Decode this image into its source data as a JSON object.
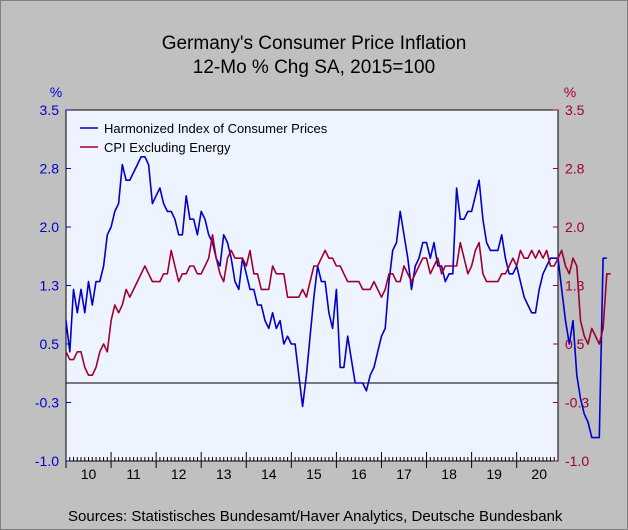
{
  "chart_data": {
    "type": "line",
    "title": "Germany's Consumer Price Inflation",
    "subtitle": "12-Mo % Chg   SA, 2015=100",
    "ylabel_left": "%",
    "ylabel_right": "%",
    "ylim": [
      -1.0,
      3.5
    ],
    "yticks": [
      "3.5",
      "2.8",
      "2.0",
      "1.3",
      "0.5",
      "-0.3",
      "-1.0"
    ],
    "ytick_values": [
      3.5,
      2.75,
      2.0,
      1.25,
      0.5,
      -0.25,
      -1.0
    ],
    "xlim": [
      2010.0,
      2020.917
    ],
    "xticks": [
      "10",
      "11",
      "12",
      "13",
      "14",
      "15",
      "16",
      "17",
      "18",
      "19",
      "20"
    ],
    "reference_line": 0,
    "legend_position": "top-left",
    "colors": {
      "hicp": "#0000cc",
      "core": "#a00030",
      "plot_bg": "#eef4ff",
      "left_axis": "#0000cc",
      "right_axis": "#a00030"
    },
    "source": "Sources:   Statistisches Bundesamt/Haver Analytics, Deutsche Bundesbank",
    "series": [
      {
        "name": "Harmonized Index of Consumer Prices",
        "color": "#0000cc",
        "start": 2010.0,
        "step": 0.0833333,
        "values": [
          0.8,
          0.4,
          1.2,
          0.9,
          1.2,
          0.9,
          1.3,
          1.0,
          1.3,
          1.3,
          1.5,
          1.9,
          2.0,
          2.2,
          2.3,
          2.8,
          2.6,
          2.6,
          2.7,
          2.8,
          2.9,
          2.9,
          2.8,
          2.3,
          2.4,
          2.5,
          2.3,
          2.2,
          2.2,
          2.1,
          1.9,
          1.9,
          2.4,
          2.1,
          2.1,
          1.9,
          2.2,
          2.1,
          1.9,
          1.8,
          1.6,
          1.5,
          1.9,
          1.8,
          1.6,
          1.3,
          1.2,
          1.6,
          1.4,
          1.2,
          1.2,
          1.0,
          1.0,
          0.8,
          0.7,
          0.9,
          0.7,
          0.8,
          0.5,
          0.6,
          0.5,
          0.5,
          0.1,
          -0.3,
          0.1,
          0.6,
          1.1,
          1.5,
          1.3,
          1.3,
          0.9,
          0.7,
          1.2,
          0.2,
          0.2,
          0.6,
          0.3,
          0.0,
          0.0,
          0.0,
          -0.1,
          0.1,
          0.2,
          0.4,
          0.6,
          0.7,
          1.3,
          1.7,
          1.8,
          2.2,
          1.9,
          1.6,
          1.2,
          1.5,
          1.6,
          1.8,
          1.8,
          1.6,
          1.8,
          1.5,
          1.5,
          1.3,
          1.4,
          1.4,
          2.5,
          2.1,
          2.1,
          2.2,
          2.2,
          2.4,
          2.6,
          2.1,
          1.8,
          1.7,
          1.7,
          1.7,
          1.9,
          1.6,
          1.4,
          1.4,
          1.5,
          1.3,
          1.1,
          1.0,
          0.9,
          0.9,
          1.2,
          1.4,
          1.5,
          1.6,
          1.6,
          1.6,
          1.2,
          0.8,
          0.5,
          0.8,
          0.1,
          -0.2,
          -0.4,
          -0.5,
          -0.7,
          -0.7,
          -0.7,
          1.6,
          1.6
        ]
      },
      {
        "name": "CPI Excluding Energy",
        "color": "#a00030",
        "start": 2010.0,
        "step": 0.0833333,
        "values": [
          0.4,
          0.3,
          0.3,
          0.4,
          0.4,
          0.2,
          0.1,
          0.1,
          0.2,
          0.4,
          0.5,
          0.4,
          0.8,
          1.0,
          0.9,
          1.0,
          1.2,
          1.1,
          1.2,
          1.3,
          1.4,
          1.5,
          1.4,
          1.3,
          1.3,
          1.3,
          1.4,
          1.4,
          1.7,
          1.5,
          1.3,
          1.4,
          1.4,
          1.5,
          1.5,
          1.4,
          1.4,
          1.5,
          1.6,
          1.9,
          1.6,
          1.4,
          1.3,
          1.6,
          1.7,
          1.6,
          1.6,
          1.6,
          1.5,
          1.7,
          1.4,
          1.4,
          1.2,
          1.2,
          1.2,
          1.5,
          1.4,
          1.4,
          1.4,
          1.1,
          1.1,
          1.1,
          1.1,
          1.2,
          1.1,
          1.3,
          1.5,
          1.5,
          1.6,
          1.7,
          1.6,
          1.6,
          1.5,
          1.5,
          1.4,
          1.3,
          1.3,
          1.3,
          1.3,
          1.2,
          1.2,
          1.2,
          1.3,
          1.2,
          1.1,
          1.2,
          1.4,
          1.4,
          1.3,
          1.3,
          1.5,
          1.4,
          1.3,
          1.4,
          1.5,
          1.6,
          1.6,
          1.4,
          1.5,
          1.6,
          1.4,
          1.5,
          1.5,
          1.5,
          1.5,
          1.8,
          1.6,
          1.4,
          1.5,
          1.7,
          1.8,
          1.4,
          1.3,
          1.3,
          1.3,
          1.3,
          1.4,
          1.4,
          1.5,
          1.6,
          1.5,
          1.7,
          1.6,
          1.6,
          1.7,
          1.6,
          1.7,
          1.6,
          1.7,
          1.5,
          1.5,
          1.6,
          1.7,
          1.5,
          1.4,
          1.6,
          1.5,
          0.8,
          0.6,
          0.5,
          0.7,
          0.6,
          0.5,
          0.7,
          1.4,
          1.4
        ]
      }
    ]
  }
}
